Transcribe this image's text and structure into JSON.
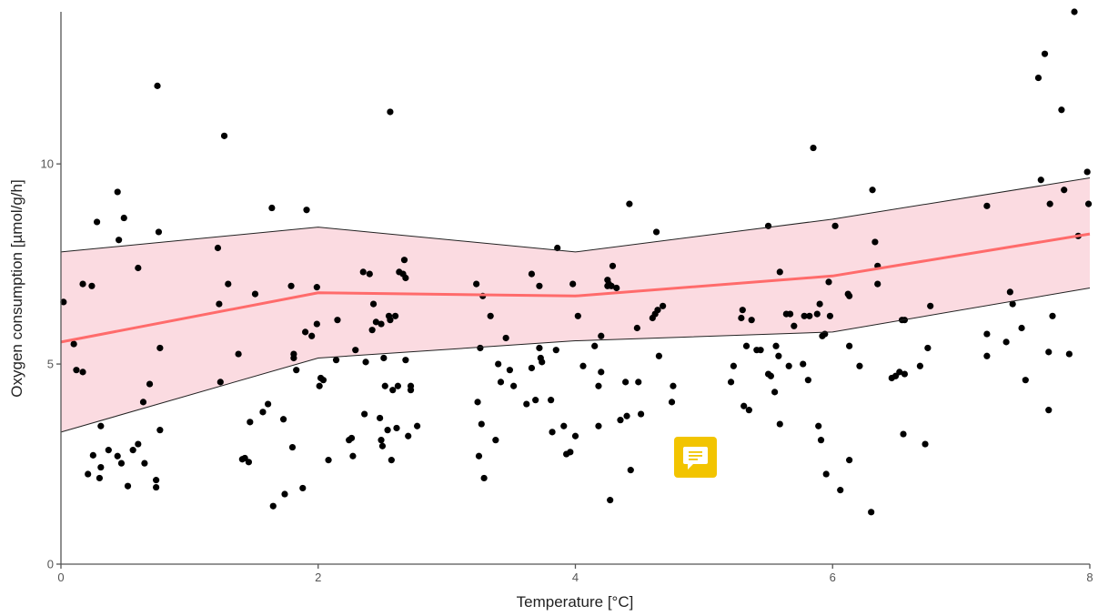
{
  "chart_data": {
    "type": "scatter",
    "title": "",
    "xlabel": "Temperature [°C]",
    "ylabel": "Oxygen consumption [µmol/g/h]",
    "xlim": [
      0,
      8
    ],
    "ylim": [
      0,
      13.8
    ],
    "xticks": [
      0,
      2,
      4,
      6,
      8
    ],
    "yticks": [
      0,
      5,
      10
    ],
    "grid": false,
    "legend": "none",
    "colors": {
      "points": "#000000",
      "fit_line": "#ff6b6b",
      "ribbon_fill": "#f7b8c4",
      "ribbon_edge": "#222222",
      "axis": "#555555"
    },
    "fit": {
      "x": [
        0,
        2,
        4,
        6,
        8
      ],
      "y": [
        5.55,
        6.78,
        6.7,
        7.2,
        8.25
      ],
      "lower": [
        3.3,
        5.15,
        5.58,
        5.8,
        6.9
      ],
      "upper": [
        7.8,
        8.42,
        7.8,
        8.62,
        9.65
      ]
    },
    "points": [
      [
        0.02,
        6.55
      ],
      [
        0.1,
        5.5
      ],
      [
        0.12,
        4.85
      ],
      [
        0.17,
        4.8
      ],
      [
        0.17,
        7.0
      ],
      [
        0.21,
        2.25
      ],
      [
        0.24,
        6.95
      ],
      [
        0.25,
        2.72
      ],
      [
        0.28,
        8.55
      ],
      [
        0.3,
        2.15
      ],
      [
        0.31,
        3.45
      ],
      [
        0.31,
        2.42
      ],
      [
        0.37,
        2.85
      ],
      [
        0.44,
        2.7
      ],
      [
        0.44,
        9.3
      ],
      [
        0.45,
        8.1
      ],
      [
        0.47,
        2.52
      ],
      [
        0.49,
        8.65
      ],
      [
        0.52,
        1.95
      ],
      [
        0.56,
        2.85
      ],
      [
        0.6,
        7.4
      ],
      [
        0.6,
        3.0
      ],
      [
        0.64,
        4.05
      ],
      [
        0.65,
        2.52
      ],
      [
        0.69,
        4.5
      ],
      [
        0.74,
        1.92
      ],
      [
        0.74,
        2.1
      ],
      [
        0.75,
        11.95
      ],
      [
        0.76,
        8.3
      ],
      [
        0.77,
        3.35
      ],
      [
        0.77,
        5.4
      ],
      [
        1.22,
        7.9
      ],
      [
        1.23,
        6.5
      ],
      [
        1.24,
        4.55
      ],
      [
        1.27,
        10.7
      ],
      [
        1.3,
        7.0
      ],
      [
        1.38,
        5.25
      ],
      [
        1.41,
        2.62
      ],
      [
        1.43,
        2.65
      ],
      [
        1.46,
        2.55
      ],
      [
        1.47,
        3.55
      ],
      [
        1.51,
        6.75
      ],
      [
        1.57,
        3.8
      ],
      [
        1.61,
        4.0
      ],
      [
        1.64,
        8.9
      ],
      [
        1.65,
        1.45
      ],
      [
        1.73,
        3.62
      ],
      [
        1.74,
        1.75
      ],
      [
        1.79,
        6.95
      ],
      [
        1.81,
        5.25
      ],
      [
        1.81,
        5.15
      ],
      [
        1.8,
        2.92
      ],
      [
        1.83,
        4.85
      ],
      [
        1.88,
        1.9
      ],
      [
        1.9,
        5.8
      ],
      [
        1.91,
        8.85
      ],
      [
        1.95,
        5.7
      ],
      [
        1.99,
        6.92
      ],
      [
        1.99,
        6.0
      ],
      [
        2.01,
        4.45
      ],
      [
        2.02,
        4.65
      ],
      [
        2.04,
        4.6
      ],
      [
        2.08,
        2.6
      ],
      [
        2.14,
        5.1
      ],
      [
        2.15,
        6.1
      ],
      [
        2.24,
        3.1
      ],
      [
        2.26,
        3.15
      ],
      [
        2.27,
        2.7
      ],
      [
        2.29,
        5.35
      ],
      [
        2.35,
        7.3
      ],
      [
        2.36,
        3.75
      ],
      [
        2.37,
        5.05
      ],
      [
        2.4,
        7.25
      ],
      [
        2.42,
        5.85
      ],
      [
        2.43,
        6.5
      ],
      [
        2.45,
        6.05
      ],
      [
        2.48,
        3.65
      ],
      [
        2.49,
        6.0
      ],
      [
        2.49,
        3.1
      ],
      [
        2.5,
        2.95
      ],
      [
        2.51,
        5.15
      ],
      [
        2.52,
        4.45
      ],
      [
        2.55,
        6.2
      ],
      [
        2.54,
        3.35
      ],
      [
        2.56,
        11.3
      ],
      [
        2.56,
        6.1
      ],
      [
        2.58,
        4.35
      ],
      [
        2.57,
        2.6
      ],
      [
        2.6,
        6.2
      ],
      [
        2.61,
        3.4
      ],
      [
        2.62,
        4.45
      ],
      [
        2.63,
        7.3
      ],
      [
        2.66,
        7.25
      ],
      [
        2.67,
        7.6
      ],
      [
        2.68,
        7.15
      ],
      [
        2.68,
        5.1
      ],
      [
        2.7,
        3.2
      ],
      [
        2.72,
        4.35
      ],
      [
        2.72,
        4.45
      ],
      [
        2.77,
        3.45
      ],
      [
        3.23,
        7.0
      ],
      [
        3.24,
        4.05
      ],
      [
        3.25,
        2.7
      ],
      [
        3.26,
        5.4
      ],
      [
        3.27,
        3.5
      ],
      [
        3.28,
        6.7
      ],
      [
        3.29,
        2.15
      ],
      [
        3.34,
        6.2
      ],
      [
        3.38,
        3.1
      ],
      [
        3.4,
        5.0
      ],
      [
        3.42,
        4.55
      ],
      [
        3.46,
        5.65
      ],
      [
        3.49,
        4.85
      ],
      [
        3.52,
        4.45
      ],
      [
        3.62,
        4.0
      ],
      [
        3.66,
        7.25
      ],
      [
        3.66,
        4.9
      ],
      [
        3.69,
        4.1
      ],
      [
        3.72,
        6.95
      ],
      [
        3.72,
        5.4
      ],
      [
        3.73,
        5.15
      ],
      [
        3.74,
        5.05
      ],
      [
        3.81,
        4.1
      ],
      [
        3.82,
        3.3
      ],
      [
        3.85,
        5.35
      ],
      [
        3.86,
        7.9
      ],
      [
        3.91,
        3.45
      ],
      [
        3.93,
        2.75
      ],
      [
        3.96,
        2.8
      ],
      [
        3.98,
        7.0
      ],
      [
        4.0,
        3.2
      ],
      [
        4.02,
        6.2
      ],
      [
        4.06,
        4.95
      ],
      [
        4.15,
        5.45
      ],
      [
        4.18,
        4.45
      ],
      [
        4.18,
        3.45
      ],
      [
        4.2,
        4.8
      ],
      [
        4.2,
        5.7
      ],
      [
        4.25,
        6.95
      ],
      [
        4.25,
        7.1
      ],
      [
        4.26,
        7.0
      ],
      [
        4.27,
        1.6
      ],
      [
        4.28,
        6.95
      ],
      [
        4.29,
        7.45
      ],
      [
        4.32,
        6.9
      ],
      [
        4.35,
        3.6
      ],
      [
        4.39,
        4.55
      ],
      [
        4.4,
        3.7
      ],
      [
        4.42,
        9.0
      ],
      [
        4.43,
        2.35
      ],
      [
        4.48,
        5.9
      ],
      [
        4.49,
        4.55
      ],
      [
        4.51,
        3.75
      ],
      [
        4.6,
        6.15
      ],
      [
        4.62,
        6.25
      ],
      [
        4.63,
        8.3
      ],
      [
        4.64,
        6.35
      ],
      [
        4.65,
        5.2
      ],
      [
        4.68,
        6.45
      ],
      [
        4.75,
        4.05
      ],
      [
        4.76,
        4.45
      ],
      [
        5.21,
        4.55
      ],
      [
        5.23,
        4.95
      ],
      [
        5.29,
        6.15
      ],
      [
        5.3,
        6.35
      ],
      [
        5.31,
        3.95
      ],
      [
        5.33,
        5.45
      ],
      [
        5.35,
        3.85
      ],
      [
        5.37,
        6.1
      ],
      [
        5.41,
        5.35
      ],
      [
        5.44,
        5.35
      ],
      [
        5.5,
        8.45
      ],
      [
        5.5,
        4.75
      ],
      [
        5.52,
        4.7
      ],
      [
        5.55,
        4.3
      ],
      [
        5.56,
        5.45
      ],
      [
        5.58,
        5.2
      ],
      [
        5.59,
        7.3
      ],
      [
        5.59,
        3.5
      ],
      [
        5.64,
        6.25
      ],
      [
        5.66,
        4.95
      ],
      [
        5.67,
        6.25
      ],
      [
        5.7,
        5.95
      ],
      [
        5.77,
        5.0
      ],
      [
        5.78,
        6.2
      ],
      [
        5.81,
        4.6
      ],
      [
        5.82,
        6.2
      ],
      [
        5.85,
        10.4
      ],
      [
        5.88,
        6.25
      ],
      [
        5.89,
        3.45
      ],
      [
        5.9,
        6.5
      ],
      [
        5.91,
        3.1
      ],
      [
        5.92,
        5.7
      ],
      [
        5.94,
        5.75
      ],
      [
        5.95,
        2.25
      ],
      [
        5.97,
        7.05
      ],
      [
        5.98,
        6.2
      ],
      [
        6.02,
        8.45
      ],
      [
        6.06,
        1.85
      ],
      [
        6.12,
        6.75
      ],
      [
        6.13,
        6.7
      ],
      [
        6.13,
        2.6
      ],
      [
        6.13,
        5.45
      ],
      [
        6.21,
        4.95
      ],
      [
        6.3,
        1.3
      ],
      [
        6.31,
        9.35
      ],
      [
        6.33,
        8.05
      ],
      [
        6.35,
        7.45
      ],
      [
        6.35,
        7.0
      ],
      [
        6.46,
        4.65
      ],
      [
        6.49,
        4.7
      ],
      [
        6.52,
        4.8
      ],
      [
        6.54,
        6.1
      ],
      [
        6.56,
        6.1
      ],
      [
        6.55,
        3.25
      ],
      [
        6.56,
        4.75
      ],
      [
        6.68,
        4.95
      ],
      [
        6.72,
        3.0
      ],
      [
        6.76,
        6.45
      ],
      [
        6.74,
        5.4
      ],
      [
        7.2,
        8.95
      ],
      [
        7.2,
        5.75
      ],
      [
        7.2,
        5.2
      ],
      [
        7.35,
        5.55
      ],
      [
        7.38,
        6.8
      ],
      [
        7.4,
        6.5
      ],
      [
        7.47,
        5.9
      ],
      [
        7.5,
        4.6
      ],
      [
        7.6,
        12.15
      ],
      [
        7.62,
        9.6
      ],
      [
        7.65,
        12.75
      ],
      [
        7.68,
        3.85
      ],
      [
        7.68,
        5.3
      ],
      [
        7.69,
        9.0
      ],
      [
        7.71,
        6.2
      ],
      [
        7.78,
        11.35
      ],
      [
        7.8,
        9.35
      ],
      [
        7.84,
        5.25
      ],
      [
        7.88,
        13.8
      ],
      [
        7.91,
        8.2
      ],
      [
        7.98,
        9.8
      ],
      [
        7.99,
        9.0
      ]
    ]
  },
  "ui": {
    "comment_button_icon": "comment-icon"
  }
}
